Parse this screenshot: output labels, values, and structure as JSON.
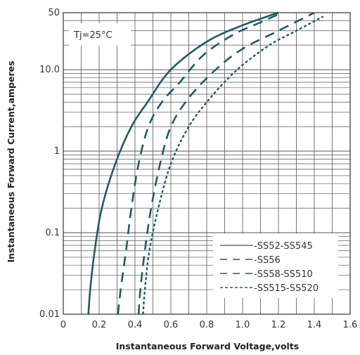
{
  "chart_data": {
    "type": "line",
    "title": "",
    "xlabel": "Instantaneous Forward Voltage,volts",
    "ylabel": "Instantaneous Forward Current,amperes",
    "xlim": [
      0,
      1.6
    ],
    "ylim": [
      0.01,
      50
    ],
    "yscale": "log",
    "grid": true,
    "x_ticks": [
      0,
      0.2,
      0.4,
      0.6,
      0.8,
      1.0,
      1.2,
      1.4,
      1.6
    ],
    "x_tick_labels": [
      "0",
      "0.2",
      "0.4",
      "0.6",
      "0.8",
      "1.0",
      "1.2",
      "1.4",
      "1.6"
    ],
    "y_tick_labels": [
      {
        "value": 0.01,
        "label": "0.01"
      },
      {
        "value": 0.1,
        "label": "0.1"
      },
      {
        "value": 1,
        "label": "1"
      },
      {
        "value": 10,
        "label": "10.0"
      },
      {
        "value": 50,
        "label": "50"
      }
    ],
    "annotation": "Tj=25°C",
    "legend_position": "bottom-right",
    "series": [
      {
        "name": "SS52-SS545",
        "style": "solid",
        "color": "#1f5c6b",
        "x": [
          0.14,
          0.15,
          0.175,
          0.215,
          0.29,
          0.38,
          0.47,
          0.6,
          0.8,
          1.0,
          1.2
        ],
        "y": [
          0.01,
          0.02,
          0.06,
          0.2,
          0.7,
          2.0,
          4.0,
          10.0,
          22.0,
          35.0,
          50.0
        ]
      },
      {
        "name": "SS56",
        "style": "dashed",
        "color": "#1f5c6b",
        "x": [
          0.305,
          0.32,
          0.35,
          0.38,
          0.42,
          0.475,
          0.55,
          0.65,
          0.78,
          0.95,
          1.1,
          1.22
        ],
        "y": [
          0.01,
          0.02,
          0.06,
          0.2,
          0.7,
          2.0,
          4.0,
          7.0,
          15.0,
          27.0,
          38.0,
          50.0
        ]
      },
      {
        "name": "SS58-SS510",
        "style": "dashed",
        "color": "#1f5c6b",
        "x": [
          0.42,
          0.43,
          0.455,
          0.49,
          0.54,
          0.6,
          0.7,
          0.85,
          1.0,
          1.2,
          1.4
        ],
        "y": [
          0.01,
          0.02,
          0.06,
          0.2,
          0.7,
          2.0,
          4.5,
          10.0,
          18.0,
          30.0,
          50.0
        ]
      },
      {
        "name": "SS515-SS520",
        "style": "dotted",
        "color": "#1f5c6b",
        "x": [
          0.445,
          0.455,
          0.48,
          0.53,
          0.6,
          0.7,
          0.82,
          0.97,
          1.15,
          1.3,
          1.45
        ],
        "y": [
          0.01,
          0.02,
          0.06,
          0.2,
          0.7,
          2.0,
          4.5,
          10.0,
          20.0,
          30.0,
          45.0
        ]
      }
    ]
  }
}
